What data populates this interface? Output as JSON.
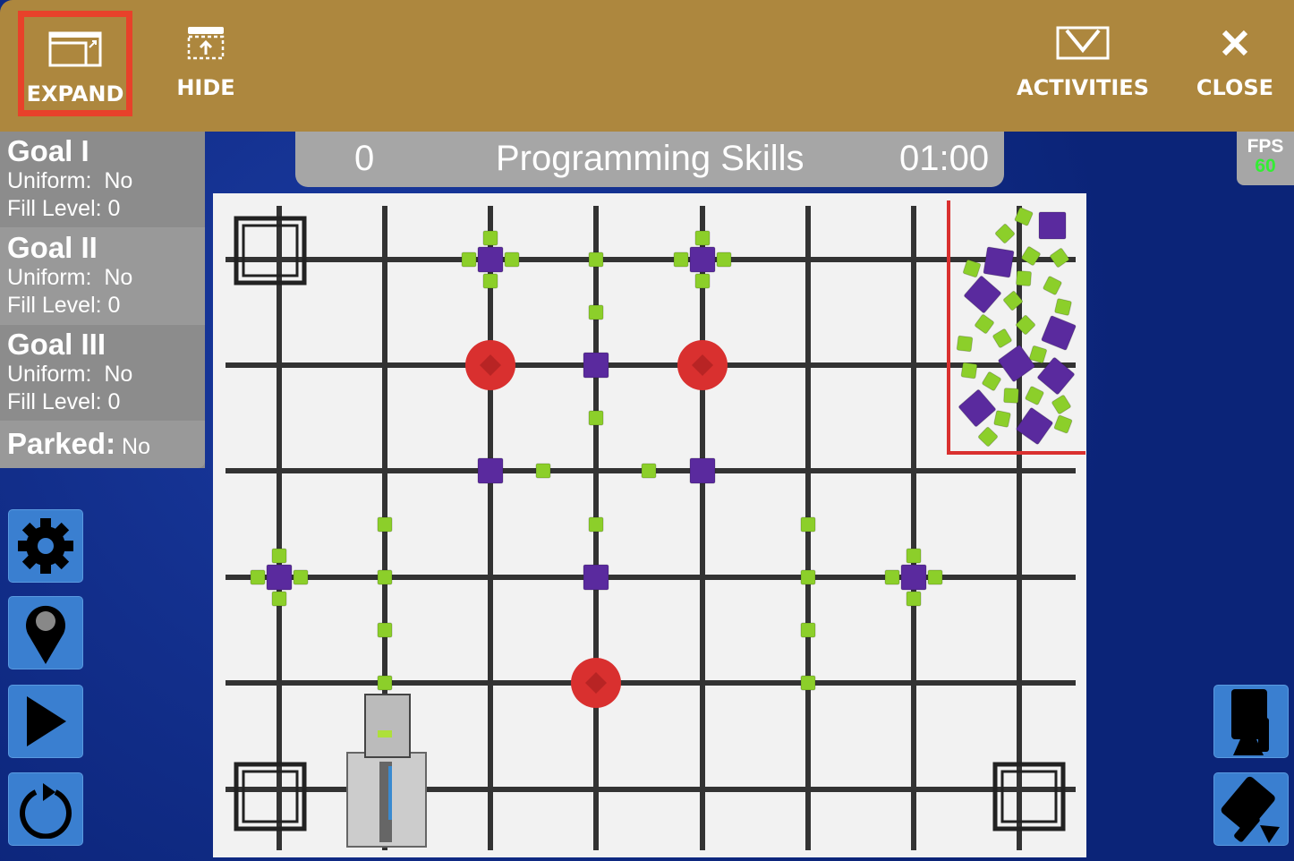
{
  "toolbar": {
    "expand": "EXPAND",
    "hide": "HIDE",
    "activities": "ACTIVITIES",
    "close": "CLOSE"
  },
  "goals": [
    {
      "title": "Goal I",
      "uniform_label": "Uniform:",
      "uniform": "No",
      "fill_label": "Fill Level:",
      "fill": "0"
    },
    {
      "title": "Goal II",
      "uniform_label": "Uniform:",
      "uniform": "No",
      "fill_label": "Fill Level:",
      "fill": "0"
    },
    {
      "title": "Goal III",
      "uniform_label": "Uniform:",
      "uniform": "No",
      "fill_label": "Fill Level:",
      "fill": "0"
    }
  ],
  "parked": {
    "label": "Parked:",
    "value": "No"
  },
  "score": {
    "points": "0",
    "mode": "Programming Skills",
    "timer": "01:00"
  },
  "fps": {
    "label": "FPS",
    "value": "60"
  },
  "side_buttons": [
    "gear-icon",
    "map-pin-icon",
    "play-icon",
    "reset-icon"
  ],
  "camera_buttons": [
    "camera-top-icon",
    "camera-angle-icon"
  ],
  "colors": {
    "toolbar": "#ad873e",
    "highlight": "#e8412a",
    "purple": "#5a2a9e",
    "green": "#8ccf2a",
    "goal_red": "#d9302f",
    "button": "#3a7fd0"
  }
}
